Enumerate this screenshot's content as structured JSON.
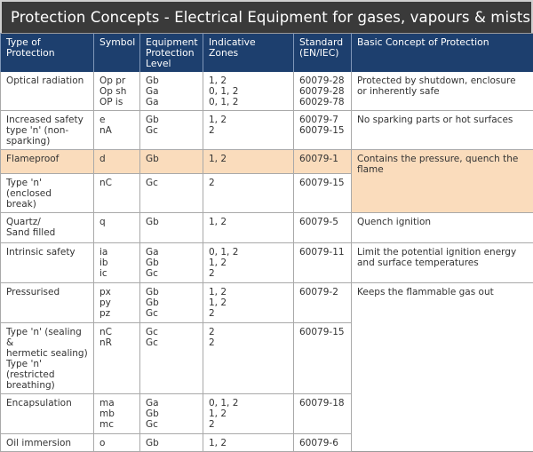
{
  "title": "Protection Concepts - Electrical Equipment for gases, vapours & mists (G)",
  "headers": {
    "type": "Type of\nProtection",
    "symbol": "Symbol",
    "epl": "Equipment\nProtection\nLevel",
    "zones": "Indicative Zones",
    "standard": "Standard\n(EN/IEC)",
    "concept": "Basic Concept of Protection"
  },
  "rows": [
    {
      "type": "Optical radiation",
      "symbol": "Op pr\nOp sh\nOP is",
      "epl": "Gb\nGa\nGa",
      "zones": "1, 2\n0, 1, 2\n0, 1, 2",
      "standard": "60079-28\n60079-28\n60029-78"
    },
    {
      "type": "Increased safety\ntype 'n' (non-\nsparking)",
      "symbol": "e\nnA",
      "epl": "Gb\nGc",
      "zones": "1, 2\n2",
      "standard": "60079-7\n60079-15"
    },
    {
      "type": "Flameproof",
      "symbol": "d",
      "epl": "Gb",
      "zones": "1, 2",
      "standard": "60079-1"
    },
    {
      "type": "Type 'n' (enclosed\nbreak)",
      "symbol": "nC",
      "epl": "Gc",
      "zones": "2",
      "standard": "60079-15"
    },
    {
      "type": "Quartz/\nSand filled",
      "symbol": "q",
      "epl": "Gb",
      "zones": "1, 2",
      "standard": "60079-5"
    },
    {
      "type": "Intrinsic safety",
      "symbol": "ia\nib\nic",
      "epl": "Ga\nGb\nGc",
      "zones": "0, 1, 2\n1, 2\n2",
      "standard": "60079-11"
    },
    {
      "type": "Pressurised",
      "symbol": "px\npy\npz",
      "epl": "Gb\nGb\nGc",
      "zones": "1, 2\n1, 2\n2",
      "standard": "60079-2"
    },
    {
      "type": "Type 'n' (sealing &\nhermetic sealing)\nType 'n' (restricted\nbreathing)",
      "symbol": "nC\nnR",
      "epl": "Gc\nGc",
      "zones": "2\n2",
      "standard": "60079-15"
    },
    {
      "type": "Encapsulation",
      "symbol": "ma\nmb\nmc",
      "epl": "Ga\nGb\nGc",
      "zones": "0, 1, 2\n1, 2\n2",
      "standard": "60079-18"
    },
    {
      "type": "Oil immersion",
      "symbol": "o",
      "epl": "Gb",
      "zones": "1, 2",
      "standard": "60079-6"
    }
  ],
  "concepts": {
    "optical": "Protected by shutdown, enclosure\nor inherently safe",
    "increased": "No sparking parts or hot surfaces",
    "flameproof": "Contains the pressure, quench the\nflame",
    "quartz": "Quench ignition",
    "intrinsic": "Limit the potential ignition energy\nand surface temperatures",
    "pressurised": "Keeps the flammable gas out"
  },
  "colors": {
    "header_bg": "#1d3f6e",
    "title_bg": "#3a3a3a",
    "highlight": "#fadcbc"
  }
}
